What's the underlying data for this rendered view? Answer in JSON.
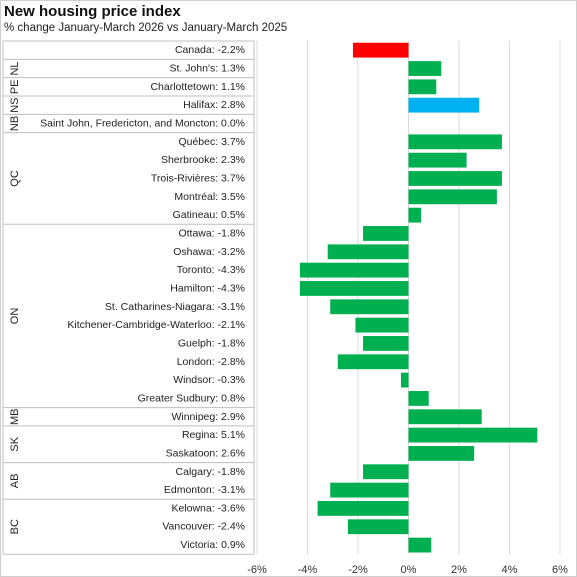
{
  "header": {
    "title": "New housing price index",
    "subtitle": "% change January-March  2026 vs January-March  2025"
  },
  "colors": {
    "canada": "#ff0000",
    "highlight": "#00b0f0",
    "default": "#00b050",
    "gridline": "#d9d9d9",
    "group_line": "#bfbfbf"
  },
  "chart_data": {
    "type": "bar",
    "orientation": "horizontal",
    "title": "New housing price index",
    "subtitle": "% change January-March  2026 vs January-March  2025",
    "xlim": [
      -6,
      6
    ],
    "x_ticks": [
      -6,
      -4,
      -2,
      0,
      2,
      4,
      6
    ],
    "x_tick_labels": [
      "-6%",
      "-4%",
      "-2%",
      "0%",
      "2%",
      "4%",
      "6%"
    ],
    "grid": "vertical",
    "legend": "none",
    "categories": [
      "Canada: -2.2%",
      "St. John's: 1.3%",
      "Charlottetown: 1.1%",
      "Halifax: 2.8%",
      "Saint John, Fredericton, and Moncton: 0.0%",
      "Québec: 3.7%",
      "Sherbrooke: 2.3%",
      "Trois-Rivières: 3.7%",
      "Montréal: 3.5%",
      "Gatineau: 0.5%",
      "Ottawa: -1.8%",
      "Oshawa: -3.2%",
      "Toronto: -4.3%",
      "Hamilton: -4.3%",
      "St. Catharines-Niagara: -3.1%",
      "Kitchener-Cambridge-Waterloo: -2.1%",
      "Guelph: -1.8%",
      "London: -2.8%",
      "Windsor: -0.3%",
      "Greater Sudbury: 0.8%",
      "Winnipeg: 2.9%",
      "Regina: 5.1%",
      "Saskatoon: 2.6%",
      "Calgary: -1.8%",
      "Edmonton: -3.1%",
      "Kelowna: -3.6%",
      "Vancouver: -2.4%",
      "Victoria: 0.9%"
    ],
    "values": [
      -2.2,
      1.3,
      1.1,
      2.8,
      0.0,
      3.7,
      2.3,
      3.7,
      3.5,
      0.5,
      -1.8,
      -3.2,
      -4.3,
      -4.3,
      -3.1,
      -2.1,
      -1.8,
      -2.8,
      -0.3,
      0.8,
      2.9,
      5.1,
      2.6,
      -1.8,
      -3.1,
      -3.6,
      -2.4,
      0.9
    ],
    "bar_colors": [
      "canada",
      "default",
      "default",
      "highlight",
      "default",
      "default",
      "default",
      "default",
      "default",
      "default",
      "default",
      "default",
      "default",
      "default",
      "default",
      "default",
      "default",
      "default",
      "default",
      "default",
      "default",
      "default",
      "default",
      "default",
      "default",
      "default",
      "default",
      "default"
    ],
    "groups": [
      {
        "label": "",
        "start": 0,
        "end": 0
      },
      {
        "label": "NL",
        "start": 1,
        "end": 1
      },
      {
        "label": "PE",
        "start": 2,
        "end": 2
      },
      {
        "label": "NS",
        "start": 3,
        "end": 3
      },
      {
        "label": "NB",
        "start": 4,
        "end": 4
      },
      {
        "label": "QC",
        "start": 5,
        "end": 9
      },
      {
        "label": "ON",
        "start": 10,
        "end": 19
      },
      {
        "label": "MB",
        "start": 20,
        "end": 20
      },
      {
        "label": "SK",
        "start": 21,
        "end": 22
      },
      {
        "label": "AB",
        "start": 23,
        "end": 24
      },
      {
        "label": "BC",
        "start": 25,
        "end": 27
      }
    ]
  }
}
